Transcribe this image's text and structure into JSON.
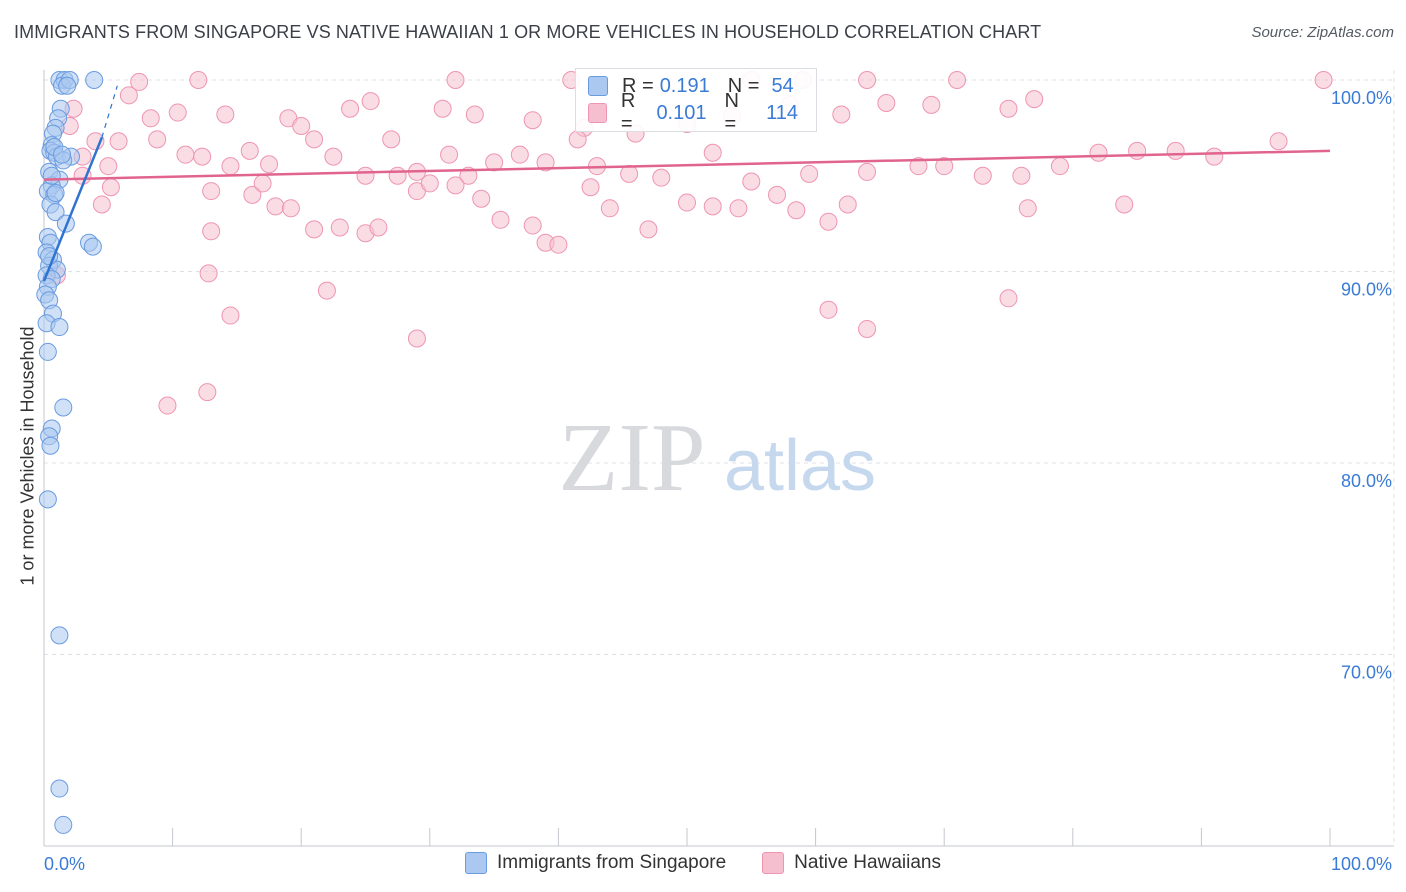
{
  "header": {
    "title": "IMMIGRANTS FROM SINGAPORE VS NATIVE HAWAIIAN 1 OR MORE VEHICLES IN HOUSEHOLD CORRELATION CHART",
    "source": "Source: ZipAtlas.com"
  },
  "watermark": {
    "zip": "ZIP",
    "atlas": "atlas"
  },
  "stats_legend": [
    {
      "r_label": "R =",
      "r_value": "0.191",
      "n_label": "N =",
      "n_value": "54"
    },
    {
      "r_label": "R =",
      "r_value": "0.101",
      "n_label": "N =",
      "n_value": "114"
    }
  ],
  "colors": {
    "blue_fill": "#aac8f0",
    "blue_stroke": "#6a9be0",
    "blue_line": "#2f74d0",
    "pink_fill": "#f6bfd0",
    "pink_stroke": "#ee95b2",
    "pink_line": "#e0648e",
    "tick_label": "#3a7bd5",
    "grid": "#dde1e6"
  },
  "chart_data": {
    "type": "scatter",
    "title": "IMMIGRANTS FROM SINGAPORE VS NATIVE HAWAIIAN 1 OR MORE VEHICLES IN HOUSEHOLD CORRELATION CHART",
    "xlabel": "",
    "ylabel": "1 or more Vehicles in Household",
    "xlim": [
      0,
      100
    ],
    "ylim": [
      60,
      100
    ],
    "x_tick_labels": [
      "0.0%",
      "100.0%"
    ],
    "y_ticks": [
      70,
      80,
      90,
      100
    ],
    "y_tick_labels": [
      "70.0%",
      "80.0%",
      "90.0%",
      "100.0%"
    ],
    "grid": true,
    "legend_position": "bottom",
    "series": [
      {
        "name": "Immigrants from Singapore",
        "color": "#6a9be0",
        "r": 0.191,
        "n": 54,
        "trend": {
          "x": [
            0.0,
            4.5
          ],
          "y": [
            89.5,
            97.0
          ]
        },
        "trend_dashed": {
          "x": [
            4.5,
            5.7
          ],
          "y": [
            97.0,
            99.7
          ]
        },
        "points": [
          [
            1.2,
            100.0
          ],
          [
            1.6,
            100.0
          ],
          [
            1.4,
            99.7
          ],
          [
            2.0,
            100.0
          ],
          [
            3.9,
            100.0
          ],
          [
            1.8,
            99.7
          ],
          [
            1.3,
            98.5
          ],
          [
            1.1,
            98.0
          ],
          [
            0.9,
            97.5
          ],
          [
            0.7,
            97.2
          ],
          [
            0.6,
            96.6
          ],
          [
            0.5,
            96.3
          ],
          [
            0.8,
            96.2
          ],
          [
            1.0,
            96.0
          ],
          [
            2.1,
            96.0
          ],
          [
            1.5,
            95.8
          ],
          [
            0.4,
            95.2
          ],
          [
            1.2,
            94.8
          ],
          [
            0.6,
            94.5
          ],
          [
            0.3,
            94.2
          ],
          [
            0.8,
            94.0
          ],
          [
            0.5,
            93.5
          ],
          [
            0.9,
            93.1
          ],
          [
            1.7,
            92.5
          ],
          [
            0.3,
            91.8
          ],
          [
            0.5,
            91.5
          ],
          [
            3.5,
            91.5
          ],
          [
            3.8,
            91.3
          ],
          [
            0.2,
            91.0
          ],
          [
            0.7,
            90.6
          ],
          [
            0.4,
            90.3
          ],
          [
            1.0,
            90.1
          ],
          [
            0.2,
            89.8
          ],
          [
            0.6,
            89.6
          ],
          [
            0.3,
            89.2
          ],
          [
            0.1,
            88.8
          ],
          [
            0.4,
            88.5
          ],
          [
            0.7,
            87.8
          ],
          [
            0.2,
            87.3
          ],
          [
            1.2,
            87.1
          ],
          [
            0.3,
            85.8
          ],
          [
            1.5,
            82.9
          ],
          [
            0.6,
            81.8
          ],
          [
            0.4,
            81.4
          ],
          [
            0.5,
            80.9
          ],
          [
            0.3,
            78.1
          ],
          [
            1.2,
            71.0
          ],
          [
            1.2,
            63.0
          ],
          [
            1.5,
            61.1
          ],
          [
            0.8,
            96.5
          ],
          [
            1.4,
            96.1
          ],
          [
            0.6,
            95.0
          ],
          [
            0.9,
            94.1
          ],
          [
            0.4,
            90.8
          ]
        ]
      },
      {
        "name": "Native Hawaiians",
        "color": "#ee95b2",
        "r": 0.101,
        "n": 114,
        "trend": {
          "x": [
            0,
            100
          ],
          "y": [
            94.8,
            96.3
          ]
        },
        "points": [
          [
            7.4,
            99.9
          ],
          [
            12.0,
            100.0
          ],
          [
            32.0,
            100.0
          ],
          [
            41.0,
            100.0
          ],
          [
            55.0,
            100.0
          ],
          [
            59.0,
            100.0
          ],
          [
            64.0,
            100.0
          ],
          [
            71.0,
            100.0
          ],
          [
            99.5,
            100.0
          ],
          [
            6.6,
            99.2
          ],
          [
            2.3,
            98.5
          ],
          [
            8.3,
            98.0
          ],
          [
            10.4,
            98.3
          ],
          [
            14.1,
            98.2
          ],
          [
            19.0,
            98.0
          ],
          [
            20.0,
            97.6
          ],
          [
            23.8,
            98.5
          ],
          [
            25.4,
            98.9
          ],
          [
            31.0,
            98.5
          ],
          [
            33.5,
            98.2
          ],
          [
            38.0,
            97.9
          ],
          [
            42.0,
            97.5
          ],
          [
            46.0,
            97.2
          ],
          [
            50.0,
            97.7
          ],
          [
            53.5,
            98.1
          ],
          [
            58.0,
            98.7
          ],
          [
            62.0,
            98.2
          ],
          [
            65.5,
            98.8
          ],
          [
            69.0,
            98.7
          ],
          [
            75.0,
            98.5
          ],
          [
            77.0,
            99.0
          ],
          [
            4.0,
            96.8
          ],
          [
            5.8,
            96.8
          ],
          [
            8.8,
            96.9
          ],
          [
            11.0,
            96.1
          ],
          [
            12.3,
            96.0
          ],
          [
            14.5,
            95.5
          ],
          [
            16.0,
            96.3
          ],
          [
            17.5,
            95.6
          ],
          [
            21.0,
            96.9
          ],
          [
            22.5,
            96.0
          ],
          [
            25.0,
            95.0
          ],
          [
            27.0,
            96.9
          ],
          [
            29.0,
            95.2
          ],
          [
            31.5,
            96.1
          ],
          [
            33.0,
            95.0
          ],
          [
            35.0,
            95.7
          ],
          [
            37.0,
            96.1
          ],
          [
            39.0,
            95.7
          ],
          [
            41.5,
            96.9
          ],
          [
            43.0,
            95.5
          ],
          [
            45.5,
            95.1
          ],
          [
            48.0,
            94.9
          ],
          [
            52.0,
            96.2
          ],
          [
            54.0,
            93.3
          ],
          [
            57.0,
            94.0
          ],
          [
            59.5,
            95.1
          ],
          [
            61.0,
            92.6
          ],
          [
            64.0,
            95.2
          ],
          [
            68.0,
            95.5
          ],
          [
            73.0,
            95.0
          ],
          [
            76.0,
            95.0
          ],
          [
            79.0,
            95.5
          ],
          [
            82.0,
            96.2
          ],
          [
            85.0,
            96.3
          ],
          [
            88.0,
            96.3
          ],
          [
            91.0,
            96.0
          ],
          [
            96.0,
            96.8
          ],
          [
            2.0,
            97.6
          ],
          [
            3.0,
            96.0
          ],
          [
            5.0,
            95.5
          ],
          [
            5.2,
            94.4
          ],
          [
            4.5,
            93.5
          ],
          [
            13.0,
            94.2
          ],
          [
            16.2,
            94.0
          ],
          [
            17.0,
            94.6
          ],
          [
            18.0,
            93.4
          ],
          [
            19.2,
            93.3
          ],
          [
            21.0,
            92.2
          ],
          [
            23.0,
            92.3
          ],
          [
            25.0,
            92.0
          ],
          [
            26.0,
            92.3
          ],
          [
            27.5,
            95.0
          ],
          [
            29.0,
            94.2
          ],
          [
            30.0,
            94.6
          ],
          [
            32.0,
            94.5
          ],
          [
            34.0,
            93.8
          ],
          [
            35.5,
            92.7
          ],
          [
            38.0,
            92.4
          ],
          [
            39.0,
            91.5
          ],
          [
            40.0,
            91.4
          ],
          [
            42.5,
            94.4
          ],
          [
            44.0,
            93.3
          ],
          [
            47.0,
            92.2
          ],
          [
            50.0,
            93.6
          ],
          [
            52.0,
            93.4
          ],
          [
            55.0,
            94.7
          ],
          [
            58.5,
            93.2
          ],
          [
            62.5,
            93.5
          ],
          [
            70.0,
            95.5
          ],
          [
            76.5,
            93.3
          ],
          [
            84.0,
            93.5
          ],
          [
            13.0,
            92.1
          ],
          [
            1.0,
            89.8
          ],
          [
            12.8,
            89.9
          ],
          [
            14.5,
            87.7
          ],
          [
            22.0,
            89.0
          ],
          [
            29.0,
            86.5
          ],
          [
            61.0,
            88.0
          ],
          [
            64.0,
            87.0
          ],
          [
            75.0,
            88.6
          ],
          [
            9.6,
            83.0
          ],
          [
            12.7,
            83.7
          ],
          [
            3.0,
            95.0
          ]
        ]
      }
    ]
  },
  "legend": [
    {
      "label": "Immigrants from Singapore"
    },
    {
      "label": "Native Hawaiians"
    }
  ]
}
